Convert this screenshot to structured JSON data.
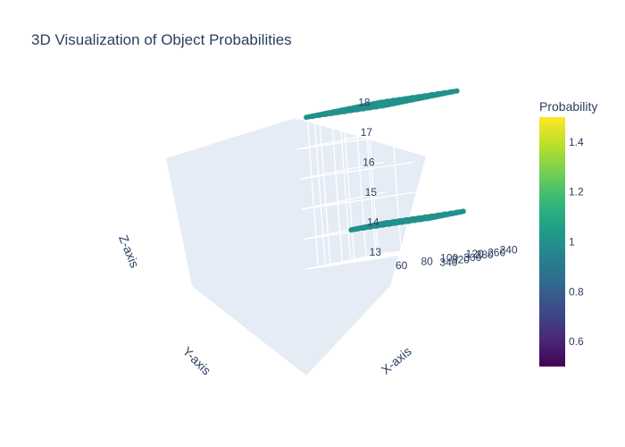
{
  "chart_data": {
    "type": "scatter3d",
    "title": "3D Visualization of Object Probabilities",
    "x_axis": {
      "label": "X-axis",
      "ticks": [
        "240",
        "260",
        "280",
        "300",
        "320",
        "340"
      ],
      "range": [
        220,
        360
      ]
    },
    "y_axis": {
      "label": "Y-axis",
      "ticks": [
        "60",
        "80",
        "100",
        "120"
      ],
      "range": [
        45,
        135
      ]
    },
    "z_axis": {
      "label": "Z-axis",
      "ticks": [
        "13",
        "14",
        "15",
        "16",
        "17",
        "18"
      ],
      "range": [
        13,
        18.1
      ]
    },
    "colorbar": {
      "title": "Probability",
      "colorscale": "Viridis",
      "range": [
        0.5,
        1.5
      ],
      "ticks": [
        "0.6",
        "0.8",
        "1",
        "1.2",
        "1.4"
      ],
      "tick_values": [
        0.6,
        0.8,
        1.0,
        1.2,
        1.4
      ]
    },
    "marker_color": "#21918c",
    "clusters": [
      {
        "name": "",
        "z": 18,
        "x_range": [
          228,
          352
        ],
        "y_range": [
          50,
          110
        ],
        "probability": 1
      },
      {
        "name": "",
        "z": 14,
        "x_range": [
          232,
          292
        ],
        "y_range": [
          50,
          110
        ],
        "probability": 1
      }
    ]
  }
}
